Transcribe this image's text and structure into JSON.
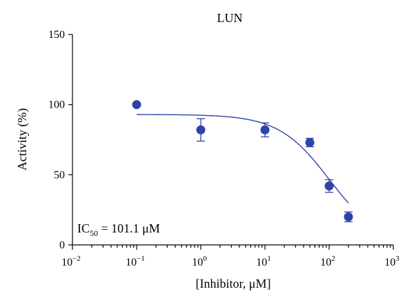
{
  "chart_data": {
    "type": "scatter",
    "title": "LUN",
    "xlabel": "[Inhibitor, μM]",
    "ylabel": "Activity (%)",
    "x_scale": "log",
    "xlim": [
      0.01,
      1000
    ],
    "ylim": [
      0,
      150
    ],
    "x_ticks": [
      {
        "value": 0.01,
        "base": "10",
        "exp": "−2"
      },
      {
        "value": 0.1,
        "base": "10",
        "exp": "−1"
      },
      {
        "value": 1,
        "base": "10",
        "exp": "0"
      },
      {
        "value": 10,
        "base": "10",
        "exp": "1"
      },
      {
        "value": 100,
        "base": "10",
        "exp": "2"
      },
      {
        "value": 1000,
        "base": "10",
        "exp": "3"
      }
    ],
    "y_ticks": [
      0,
      50,
      100,
      150
    ],
    "grid": false,
    "colors": {
      "series": "#2e43a8",
      "axis": "#000000"
    },
    "series": [
      {
        "points": [
          {
            "x": 0.1,
            "y": 100,
            "err": 0
          },
          {
            "x": 1,
            "y": 82,
            "err": 8
          },
          {
            "x": 10,
            "y": 82,
            "err": 5
          },
          {
            "x": 50,
            "y": 73,
            "err": 3
          },
          {
            "x": 100,
            "y": 42,
            "err": 4.5
          },
          {
            "x": 200,
            "y": 20,
            "err": 3.5
          }
        ],
        "fit": {
          "model": "four-parameter logistic",
          "top": 93,
          "bottom": 0,
          "ic50": 101.1,
          "hill": 1.1,
          "x_range": [
            0.1,
            200
          ]
        }
      }
    ],
    "annotation": {
      "prefix": "IC",
      "subscript": "50",
      "suffix": " = 101.1 μM"
    }
  }
}
